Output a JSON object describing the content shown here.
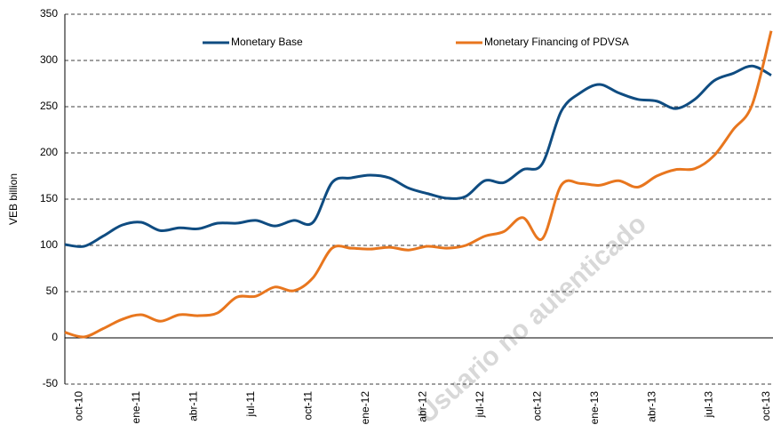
{
  "chart_data": {
    "type": "line",
    "y_label": "VEB billion",
    "watermark": "Usuario no autenticado",
    "categories": [
      null,
      "oct-10",
      null,
      null,
      "ene-11",
      null,
      null,
      "abr-11",
      null,
      null,
      "jul-11",
      null,
      null,
      "oct-11",
      null,
      null,
      "ene-12",
      null,
      null,
      "abr-12",
      null,
      null,
      "jul-12",
      null,
      null,
      "oct-12",
      null,
      null,
      "ene-13",
      null,
      null,
      "abr-13",
      null,
      null,
      "jul-13",
      null,
      null,
      "oct-13"
    ],
    "series": [
      {
        "name": "Monetary Base",
        "color": "#0f4c81",
        "values": [
          101,
          99,
          110,
          122,
          125,
          116,
          119,
          118,
          124,
          124,
          127,
          121,
          127,
          125,
          168,
          173,
          176,
          173,
          162,
          156,
          151,
          153,
          170,
          168,
          182,
          188,
          245,
          265,
          274,
          265,
          258,
          256,
          248,
          258,
          278,
          286,
          294,
          284
        ]
      },
      {
        "name": "Monetary Financing of PDVSA",
        "color": "#e8761e",
        "values": [
          6,
          1,
          10,
          20,
          25,
          18,
          25,
          24,
          27,
          44,
          45,
          55,
          51,
          65,
          97,
          97,
          96,
          98,
          95,
          99,
          97,
          100,
          110,
          115,
          130,
          107,
          165,
          167,
          165,
          170,
          163,
          175,
          182,
          183,
          197,
          225,
          252,
          332
        ]
      }
    ],
    "ylim": [
      -50,
      350
    ],
    "yticks": [
      -50,
      0,
      50,
      100,
      150,
      200,
      250,
      300,
      350
    ],
    "grid": true,
    "legend": "top"
  }
}
